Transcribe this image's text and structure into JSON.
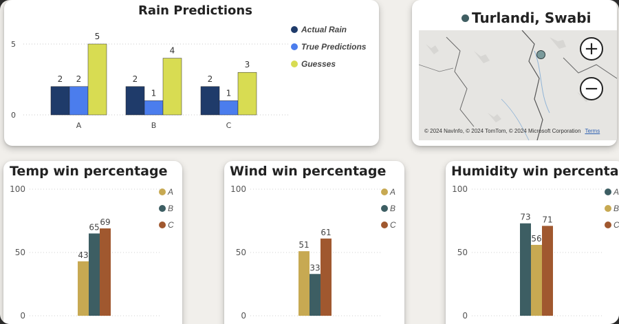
{
  "rain_card": {
    "title": "Rain Predictions",
    "legend": [
      {
        "label": "Actual Rain",
        "color": "#1f3b6a"
      },
      {
        "label": "True Predictions",
        "color": "#4b7ded"
      },
      {
        "label": "Guesses",
        "color": "#d8dc52"
      }
    ]
  },
  "map_card": {
    "title": "Turlandi, Swabi",
    "marker_color": "#3f5e62",
    "zoom_in_label": "+",
    "zoom_out_label": "−",
    "attribution": "© 2024 NavInfo, © 2024 TomTom, © 2024 Microsoft Corporation",
    "terms_label": "Terms"
  },
  "temp_card": {
    "title": "Temp win percentage",
    "legend": [
      {
        "label": "A",
        "color": "#c7a952"
      },
      {
        "label": "B",
        "color": "#3d5e63"
      },
      {
        "label": "C",
        "color": "#a0582f"
      }
    ]
  },
  "wind_card": {
    "title": "Wind win percentage",
    "legend": [
      {
        "label": "A",
        "color": "#c7a952"
      },
      {
        "label": "B",
        "color": "#3d5e63"
      },
      {
        "label": "C",
        "color": "#a0582f"
      }
    ]
  },
  "humidity_card": {
    "title": "Humidity win percentage",
    "legend": [
      {
        "label": "A",
        "color": "#3d5e63"
      },
      {
        "label": "B",
        "color": "#c7a952"
      },
      {
        "label": "C",
        "color": "#a0582f"
      }
    ]
  },
  "chart_data": [
    {
      "type": "bar",
      "title": "Rain Predictions",
      "categories": [
        "A",
        "B",
        "C"
      ],
      "series": [
        {
          "name": "Actual Rain",
          "values": [
            2,
            2,
            2
          ],
          "color": "#1f3b6a"
        },
        {
          "name": "True Predictions",
          "values": [
            2,
            1,
            1
          ],
          "color": "#4b7ded"
        },
        {
          "name": "Guesses",
          "values": [
            5,
            4,
            3
          ],
          "color": "#d8dc52"
        }
      ],
      "ylim": [
        0,
        5
      ],
      "yticks": [
        0,
        5
      ],
      "legend": "right",
      "grid": true
    },
    {
      "type": "bar",
      "title": "Temp win percentage",
      "series": [
        {
          "name": "A",
          "values": [
            43
          ],
          "color": "#c7a952"
        },
        {
          "name": "B",
          "values": [
            65
          ],
          "color": "#3d5e63"
        },
        {
          "name": "C",
          "values": [
            69
          ],
          "color": "#a0582f"
        }
      ],
      "ylim": [
        0,
        100
      ],
      "yticks": [
        0,
        50,
        100
      ],
      "legend": "right",
      "grid": true
    },
    {
      "type": "bar",
      "title": "Wind win percentage",
      "series": [
        {
          "name": "A",
          "values": [
            51
          ],
          "color": "#c7a952"
        },
        {
          "name": "B",
          "values": [
            33
          ],
          "color": "#3d5e63"
        },
        {
          "name": "C",
          "values": [
            61
          ],
          "color": "#a0582f"
        }
      ],
      "ylim": [
        0,
        100
      ],
      "yticks": [
        0,
        50,
        100
      ],
      "legend": "right",
      "grid": true
    },
    {
      "type": "bar",
      "title": "Humidity win percentage",
      "series": [
        {
          "name": "A",
          "values": [
            73
          ],
          "color": "#3d5e63"
        },
        {
          "name": "B",
          "values": [
            56
          ],
          "color": "#c7a952"
        },
        {
          "name": "C",
          "values": [
            71
          ],
          "color": "#a0582f"
        }
      ],
      "ylim": [
        0,
        100
      ],
      "yticks": [
        0,
        50,
        100
      ],
      "legend": "right",
      "grid": true
    }
  ]
}
